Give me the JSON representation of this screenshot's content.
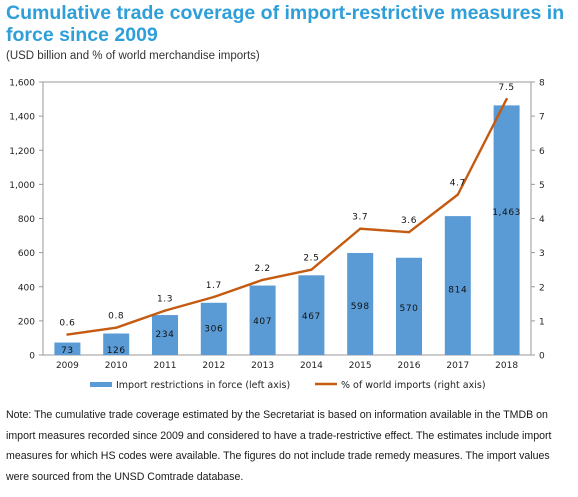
{
  "title": "Cumulative trade coverage of import-restrictive measures in force since 2009",
  "subtitle": "(USD billion and % of world merchandise imports)",
  "note": "Note: The cumulative trade coverage estimated by the Secretariat is based on information available in the TMDB on import measures recorded since 2009 and considered to have a trade-restrictive effect. The estimates include import measures for which HS codes were available. The figures do not include trade remedy measures. The import values were sourced from the UNSD Comtrade database.",
  "colors": {
    "bar": "#5b9bd5",
    "line": "#c55a11",
    "title": "#2e9fd8"
  },
  "chart_data": {
    "type": "bar+line",
    "categories": [
      "2009",
      "2010",
      "2011",
      "2012",
      "2013",
      "2014",
      "2015",
      "2016",
      "2017",
      "2018"
    ],
    "series": [
      {
        "name": "Import restrictions in force (left axis)",
        "type": "bar",
        "axis": "left",
        "values": [
          73,
          126,
          234,
          306,
          407,
          467,
          598,
          570,
          814,
          1463
        ],
        "labels": [
          "73",
          "126",
          "234",
          "306",
          "407",
          "467",
          "598",
          "570",
          "814",
          "1,463"
        ]
      },
      {
        "name": "% of world imports (right axis)",
        "type": "line",
        "axis": "right",
        "values": [
          0.6,
          0.8,
          1.3,
          1.7,
          2.2,
          2.5,
          3.7,
          3.6,
          4.7,
          7.5
        ],
        "labels": [
          "0.6",
          "0.8",
          "1.3",
          "1.7",
          "2.2",
          "2.5",
          "3.7",
          "3.6",
          "4.7",
          "7.5"
        ]
      }
    ],
    "left_axis": {
      "range": [
        0,
        1600
      ],
      "ticks": [
        "0",
        "200",
        "400",
        "600",
        "800",
        "1,000",
        "1,200",
        "1,400",
        "1,600"
      ]
    },
    "right_axis": {
      "range": [
        0,
        8
      ],
      "ticks": [
        "0",
        "1",
        "2",
        "3",
        "4",
        "5",
        "6",
        "7",
        "8"
      ]
    },
    "grid": false,
    "legend_position": "bottom"
  }
}
